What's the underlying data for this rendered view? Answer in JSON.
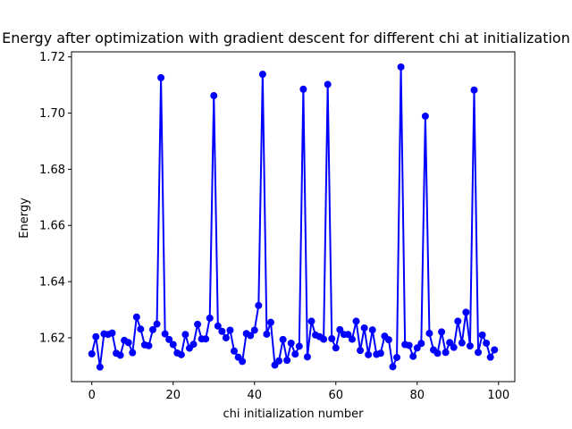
{
  "chart_data": {
    "type": "line",
    "title": "Energy after optimization with gradient descent for different chi at initialization",
    "xlabel": "chi initialization number",
    "ylabel": "Energy",
    "xlim": [
      -5,
      104
    ],
    "ylim": [
      1.6044,
      1.7218
    ],
    "x_ticks": [
      0,
      20,
      40,
      60,
      80,
      100
    ],
    "y_ticks": [
      1.62,
      1.64,
      1.66,
      1.68,
      1.7,
      1.72
    ],
    "y_tick_labels": [
      "1.62",
      "1.64",
      "1.66",
      "1.68",
      "1.70",
      "1.72"
    ],
    "grid": false,
    "marker": "circle",
    "color": "#0000ff",
    "series": [
      {
        "x": [
          0,
          1,
          2,
          3,
          4,
          5,
          6,
          7,
          8,
          9,
          10,
          11,
          12,
          13,
          14,
          15,
          16,
          17,
          18,
          19,
          20,
          21,
          22,
          23,
          24,
          25,
          26,
          27,
          28,
          29,
          30,
          31,
          32,
          33,
          34,
          35,
          36,
          37,
          38,
          39,
          40,
          41,
          42,
          43,
          44,
          45,
          46,
          47,
          48,
          49,
          50,
          51,
          52,
          53,
          54,
          55,
          56,
          57,
          58,
          59,
          60,
          61,
          62,
          63,
          64,
          65,
          66,
          67,
          68,
          69,
          70,
          71,
          72,
          73,
          74,
          75,
          76,
          77,
          78,
          79,
          80,
          81,
          82,
          83,
          84,
          85,
          86,
          87,
          88,
          89,
          90,
          91,
          92,
          93,
          94,
          95,
          96,
          97,
          98,
          99
        ],
        "values": [
          1.6143,
          1.6204,
          1.6096,
          1.6214,
          1.6212,
          1.6217,
          1.6145,
          1.6138,
          1.6191,
          1.6183,
          1.6147,
          1.6274,
          1.6231,
          1.6175,
          1.6172,
          1.6229,
          1.6249,
          1.7126,
          1.6214,
          1.6194,
          1.6176,
          1.6146,
          1.614,
          1.6212,
          1.6163,
          1.6177,
          1.6248,
          1.6196,
          1.6196,
          1.627,
          1.7062,
          1.6242,
          1.6223,
          1.62,
          1.6227,
          1.6153,
          1.6131,
          1.6116,
          1.6215,
          1.6208,
          1.6227,
          1.6315,
          1.7138,
          1.6213,
          1.6255,
          1.6103,
          1.6118,
          1.6194,
          1.612,
          1.6181,
          1.6142,
          1.617,
          1.7085,
          1.6132,
          1.6259,
          1.621,
          1.6204,
          1.6195,
          1.7102,
          1.6197,
          1.6164,
          1.6229,
          1.6212,
          1.6212,
          1.6195,
          1.6259,
          1.6155,
          1.6235,
          1.614,
          1.6228,
          1.6141,
          1.6145,
          1.6206,
          1.6193,
          1.6097,
          1.613,
          1.7164,
          1.6176,
          1.6173,
          1.6134,
          1.6164,
          1.618,
          1.6989,
          1.6216,
          1.6157,
          1.6145,
          1.6221,
          1.6148,
          1.6183,
          1.6166,
          1.6259,
          1.6182,
          1.6291,
          1.6171,
          1.7082,
          1.6148,
          1.621,
          1.6181,
          1.6131,
          1.6157
        ]
      }
    ]
  }
}
